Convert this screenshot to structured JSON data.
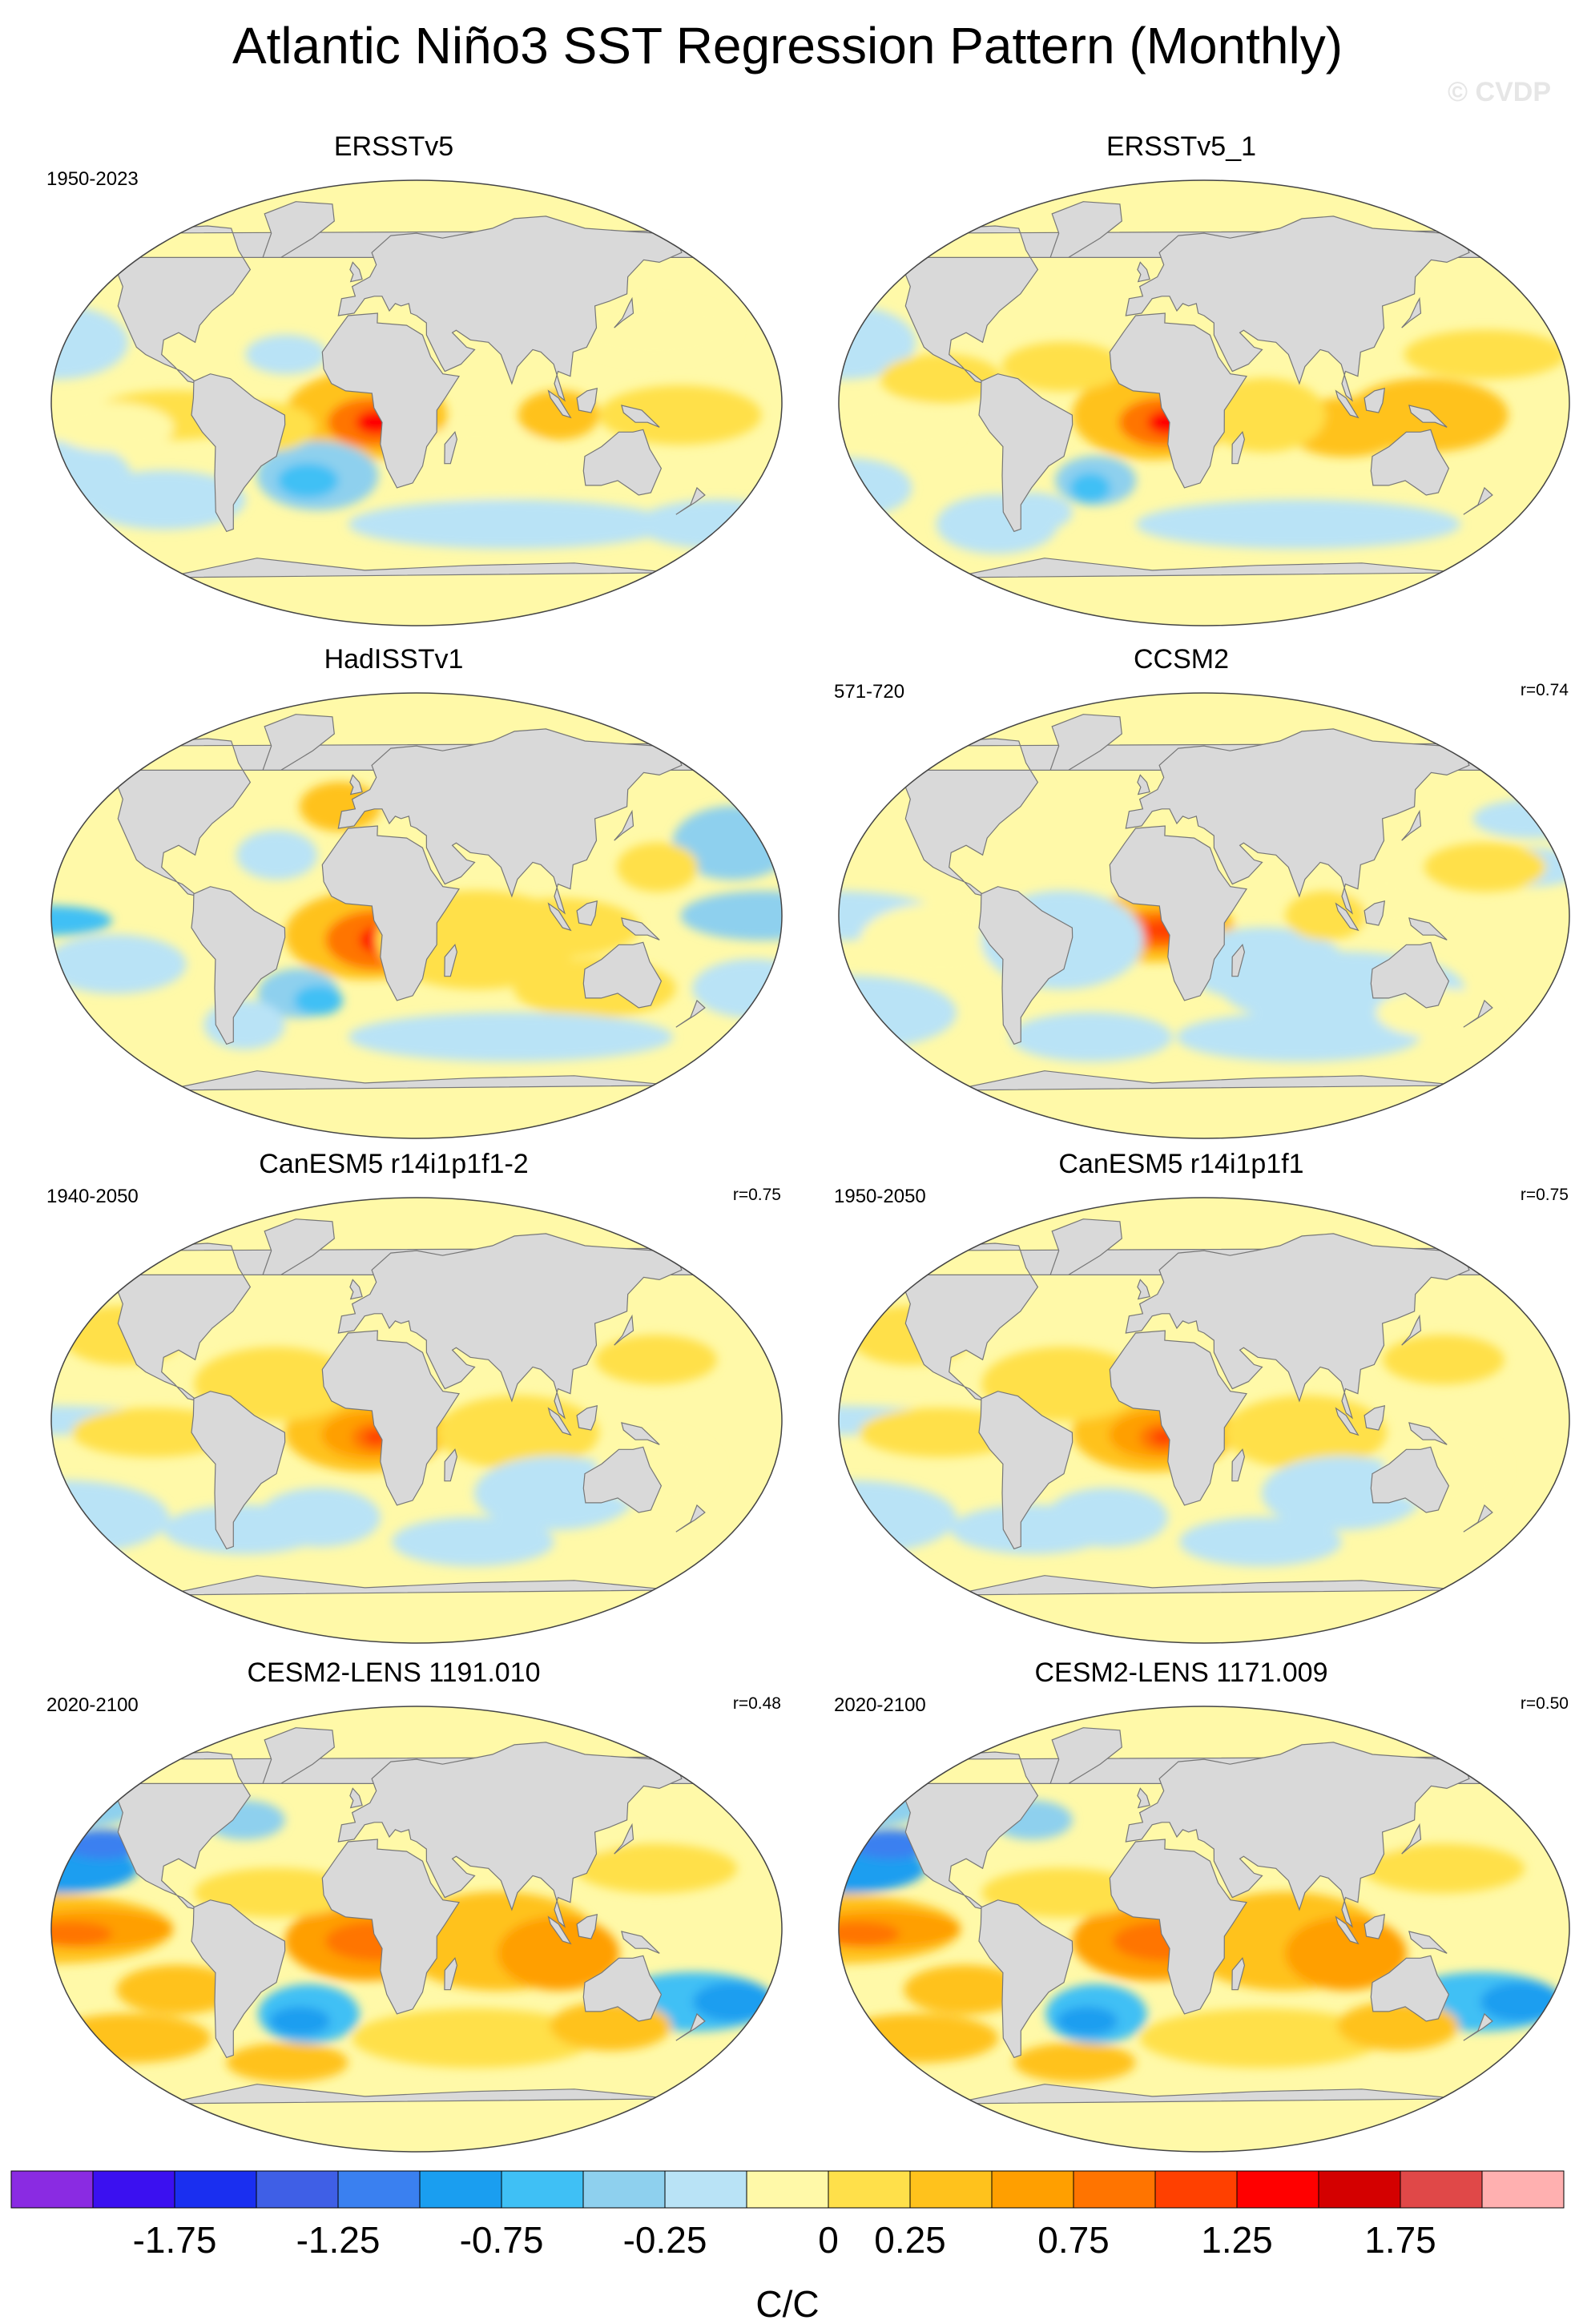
{
  "title": "Atlantic Niño3 SST Regression Pattern (Monthly)",
  "watermark": "© CVDP",
  "colors": {
    "land": "#d9d9d9",
    "coast": "#777777",
    "palette": [
      "#8a2be2",
      "#3b10f0",
      "#1a2ff0",
      "#3f5fe6",
      "#3a80f0",
      "#1a9ef0",
      "#3fc0f5",
      "#8ed0ee",
      "#b9e3f6",
      "#fff9a8",
      "#ffe04a",
      "#ffc21c",
      "#ff9f00",
      "#ff7400",
      "#ff4000",
      "#ff0000",
      "#d40000",
      "#e04848",
      "#ffb0b0"
    ]
  },
  "panels": [
    {
      "name": "ERSSTv5",
      "period": "1950-2023",
      "r": "",
      "pattern": "obs",
      "intensity": 0.9
    },
    {
      "name": "ERSSTv5_1",
      "period": "",
      "r": "",
      "pattern": "obs2",
      "intensity": 1.0
    },
    {
      "name": "HadISSTv1",
      "period": "",
      "r": "",
      "pattern": "hadisst",
      "intensity": 1.0
    },
    {
      "name": "CCSM2",
      "period": "571-720",
      "r": "r=0.74",
      "pattern": "ccsm",
      "intensity": 0.8
    },
    {
      "name": "CanESM5 r14i1p1f1-2",
      "period": "1940-2050",
      "r": "r=0.75",
      "pattern": "can",
      "intensity": 0.85
    },
    {
      "name": "CanESM5 r14i1p1f1",
      "period": "1950-2050",
      "r": "r=0.75",
      "pattern": "can",
      "intensity": 0.85
    },
    {
      "name": "CESM2-LENS 1191.010",
      "period": "2020-2100",
      "r": "r=0.48",
      "pattern": "cesm",
      "intensity": 1.0
    },
    {
      "name": "CESM2-LENS 1171.009",
      "period": "2020-2100",
      "r": "r=0.50",
      "pattern": "cesm",
      "intensity": 0.95
    }
  ],
  "legend": {
    "labels": [
      "-1.75",
      "-1.25",
      "-0.75",
      "-0.25",
      "0",
      "0.25",
      "0.75",
      "1.25",
      "1.75"
    ],
    "unit": "C/C"
  }
}
